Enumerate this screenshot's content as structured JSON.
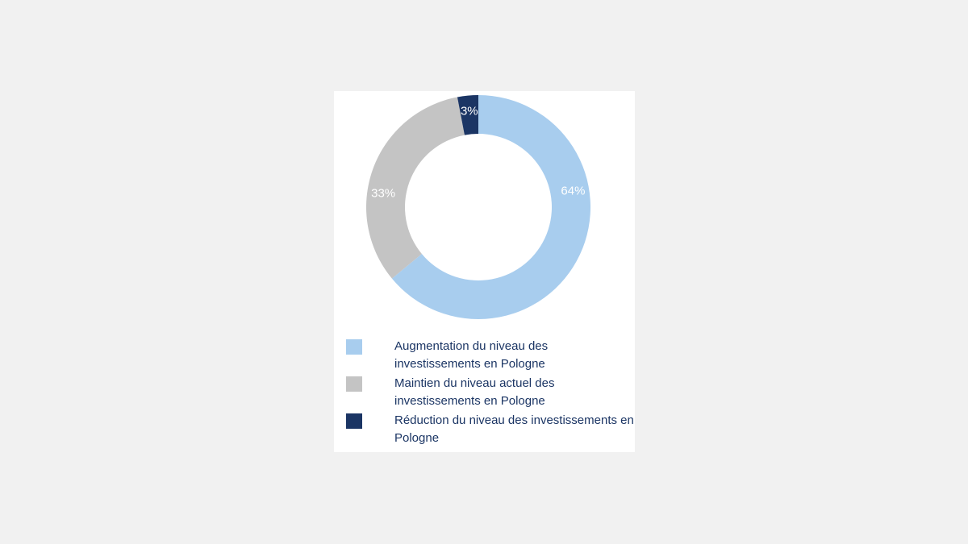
{
  "chart_data": {
    "type": "pie",
    "donut": true,
    "categories": [
      "Augmentation du niveau des investissements en Pologne",
      "Maintien du niveau actuel des investissements en Pologne",
      "Réduction du niveau des investissements en Pologne"
    ],
    "values": [
      64,
      33,
      3
    ],
    "labels": [
      "64%",
      "33%",
      "3%"
    ],
    "colors": [
      "#a8cdee",
      "#c4c4c4",
      "#1b3564"
    ],
    "legend_position": "bottom"
  },
  "legend": [
    {
      "text": "Augmentation du niveau des investissements en Pologne",
      "color": "#a8cdee"
    },
    {
      "text": "Maintien du niveau actuel des investissements en Pologne",
      "color": "#c4c4c4"
    },
    {
      "text": "Réduction du niveau des investissements en Pologne",
      "color": "#1b3564"
    }
  ]
}
